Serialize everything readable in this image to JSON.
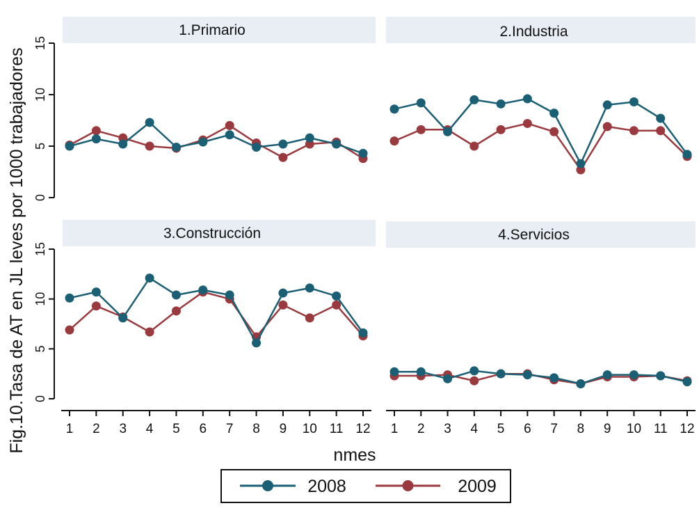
{
  "chart_data": {
    "type": "line",
    "ylabel": "Fig.10.Tasa de AT en JL leves por 1000 trabajadores",
    "xlabel": "nmes",
    "x": [
      1,
      2,
      3,
      4,
      5,
      6,
      7,
      8,
      9,
      10,
      11,
      12
    ],
    "x_tick_labels": [
      "1",
      "2",
      "3",
      "4",
      "5",
      "6",
      "7",
      "8",
      "9",
      "10",
      "11",
      "12"
    ],
    "ylim": [
      0,
      15
    ],
    "y_ticks": [
      0,
      5,
      10,
      15
    ],
    "y_tick_labels": [
      "0",
      "5",
      "10",
      "15"
    ],
    "grid": false,
    "legend_position": "bottom",
    "colors": {
      "2008": "#1a5f74",
      "2009": "#9b3a3e"
    },
    "legend": [
      {
        "name": "2008",
        "color": "#1a5f74"
      },
      {
        "name": "2009",
        "color": "#9b3a3e"
      }
    ],
    "panels": [
      {
        "title": "1.Primario",
        "series": [
          {
            "name": "2008",
            "values": [
              5.0,
              5.7,
              5.2,
              7.3,
              4.9,
              5.4,
              6.1,
              4.9,
              5.2,
              5.8,
              5.2,
              4.3
            ]
          },
          {
            "name": "2009",
            "values": [
              5.1,
              6.5,
              5.8,
              5.0,
              4.8,
              5.6,
              7.0,
              5.3,
              3.9,
              5.2,
              5.4,
              3.8
            ]
          }
        ]
      },
      {
        "title": "2.Industria",
        "series": [
          {
            "name": "2008",
            "values": [
              8.6,
              9.2,
              6.4,
              9.5,
              9.1,
              9.6,
              8.2,
              3.3,
              9.0,
              9.3,
              7.7,
              4.2
            ]
          },
          {
            "name": "2009",
            "values": [
              5.5,
              6.6,
              6.6,
              5.0,
              6.6,
              7.2,
              6.4,
              2.7,
              6.9,
              6.5,
              6.5,
              4.0
            ]
          }
        ]
      },
      {
        "title": "3.Construcción",
        "series": [
          {
            "name": "2008",
            "values": [
              10.1,
              10.7,
              8.1,
              12.1,
              10.4,
              10.9,
              10.4,
              5.6,
              10.6,
              11.1,
              10.3,
              6.6
            ]
          },
          {
            "name": "2009",
            "values": [
              6.9,
              9.3,
              8.2,
              6.7,
              8.8,
              10.7,
              10.0,
              6.2,
              9.4,
              8.1,
              9.4,
              6.3
            ]
          }
        ]
      },
      {
        "title": "4.Servicios",
        "series": [
          {
            "name": "2008",
            "values": [
              2.7,
              2.7,
              2.0,
              2.8,
              2.5,
              2.4,
              2.1,
              1.5,
              2.4,
              2.4,
              2.3,
              1.7
            ]
          },
          {
            "name": "2009",
            "values": [
              2.3,
              2.3,
              2.4,
              1.8,
              2.5,
              2.5,
              1.9,
              1.5,
              2.2,
              2.2,
              2.3,
              1.8
            ]
          }
        ]
      }
    ]
  }
}
